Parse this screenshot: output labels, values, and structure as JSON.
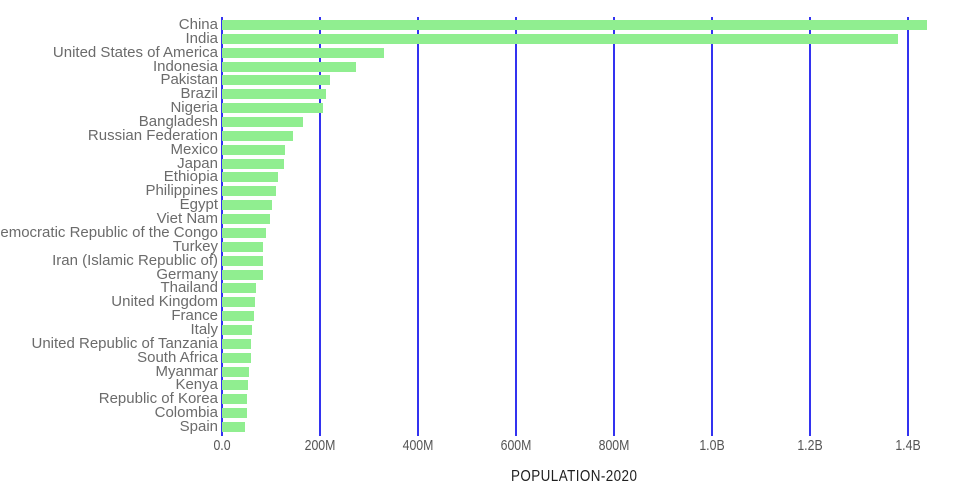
{
  "colors": {
    "bar": "#90ee90",
    "gridline": "#3333f0",
    "country_label": "#6b6b6b",
    "tick_label": "#555555",
    "axis_title": "#1f1f1f",
    "background": "#ffffff"
  },
  "chart_data": {
    "type": "bar",
    "orientation": "horizontal",
    "title": "",
    "xlabel": "POPULATION-2020",
    "ylabel": "",
    "values_unit": "millions of people",
    "grid": true,
    "legend": false,
    "xlim_millions": [
      0,
      1475
    ],
    "x_ticks": [
      "0.0",
      "200M",
      "400M",
      "600M",
      "800M",
      "1.0B",
      "1.2B",
      "1.4B"
    ],
    "x_tick_values_millions": [
      0,
      200,
      400,
      600,
      800,
      1000,
      1200,
      1400
    ],
    "categories": [
      "China",
      "India",
      "United States of America",
      "Indonesia",
      "Pakistan",
      "Brazil",
      "Nigeria",
      "Bangladesh",
      "Russian Federation",
      "Mexico",
      "Japan",
      "Ethiopia",
      "Philippines",
      "Egypt",
      "Viet Nam",
      "Democratic Republic of the Congo",
      "Turkey",
      "Iran (Islamic Republic of)",
      "Germany",
      "Thailand",
      "United Kingdom",
      "France",
      "Italy",
      "United Republic of Tanzania",
      "South Africa",
      "Myanmar",
      "Kenya",
      "Republic of Korea",
      "Colombia",
      "Spain"
    ],
    "values": [
      1439.3,
      1380.0,
      331.0,
      273.5,
      220.9,
      212.6,
      206.1,
      164.7,
      145.9,
      128.9,
      126.5,
      115.0,
      109.6,
      102.3,
      97.3,
      89.6,
      84.3,
      84.0,
      83.8,
      69.8,
      67.9,
      65.3,
      60.5,
      59.7,
      59.3,
      54.4,
      53.8,
      51.3,
      50.9,
      46.8
    ]
  }
}
